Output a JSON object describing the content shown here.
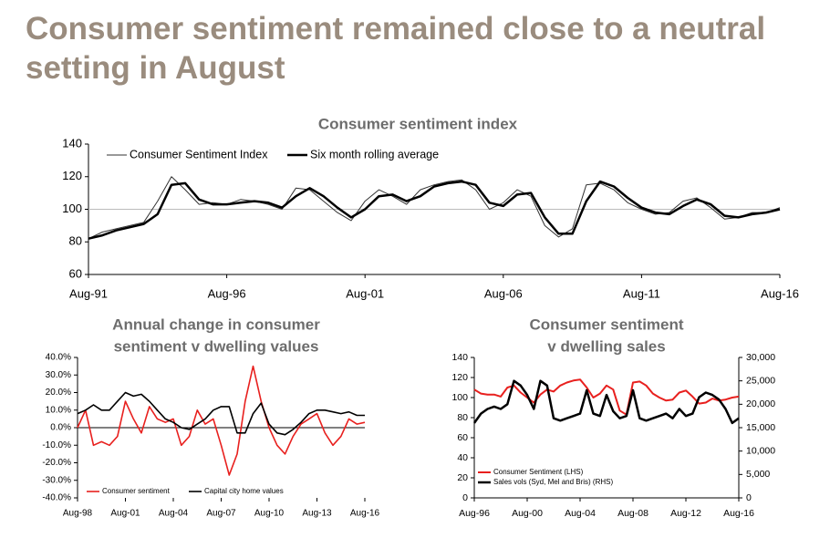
{
  "title": [
    "Consumer sentiment remained close to a neutral",
    "setting in August"
  ],
  "chart_data": [
    {
      "type": "line",
      "title": [
        "Consumer sentiment index"
      ],
      "categories": [
        "Aug-91",
        null,
        null,
        null,
        null,
        null,
        null,
        null,
        null,
        null,
        "Aug-96",
        null,
        null,
        null,
        null,
        null,
        null,
        null,
        null,
        null,
        "Aug-01",
        null,
        null,
        null,
        null,
        null,
        null,
        null,
        null,
        null,
        "Aug-06",
        null,
        null,
        null,
        null,
        null,
        null,
        null,
        null,
        null,
        "Aug-11",
        null,
        null,
        null,
        null,
        null,
        null,
        null,
        null,
        null,
        "Aug-16"
      ],
      "series": [
        {
          "name": "Consumer Sentiment Index",
          "color": "#333333",
          "values": [
            82,
            86,
            88,
            90,
            92,
            105,
            120,
            112,
            103,
            104,
            103,
            106,
            105,
            103,
            100,
            113,
            112,
            105,
            98,
            93,
            105,
            112,
            108,
            103,
            112,
            115,
            117,
            118,
            112,
            100,
            104,
            112,
            108,
            90,
            83,
            88,
            115,
            116,
            112,
            104,
            100,
            97,
            98,
            105,
            107,
            101,
            94,
            95,
            98,
            98,
            101
          ]
        },
        {
          "name": "Six month rolling average",
          "color": "#000000",
          "values": [
            82,
            84,
            87,
            89,
            91,
            97,
            115,
            116,
            106,
            103,
            103,
            104,
            105,
            104,
            101,
            108,
            113,
            108,
            101,
            95,
            100,
            108,
            109,
            105,
            108,
            114,
            116,
            117,
            115,
            104,
            102,
            109,
            110,
            95,
            85,
            85,
            105,
            117,
            114,
            107,
            101,
            98,
            97,
            102,
            106,
            103,
            96,
            95,
            97,
            98,
            100
          ]
        }
      ],
      "ylim": [
        60,
        140
      ],
      "yticks": [
        60,
        80,
        100,
        120,
        140
      ],
      "hline": 100,
      "legend": "top-left"
    },
    {
      "type": "line",
      "title": [
        "Annual change in consumer",
        "sentiment v dwelling values"
      ],
      "categories": [
        "Aug-98",
        null,
        null,
        null,
        null,
        null,
        "Aug-01",
        null,
        null,
        null,
        null,
        null,
        "Aug-04",
        null,
        null,
        null,
        null,
        null,
        "Aug-07",
        null,
        null,
        null,
        null,
        null,
        "Aug-10",
        null,
        null,
        null,
        null,
        null,
        "Aug-13",
        null,
        null,
        null,
        null,
        null,
        "Aug-16"
      ],
      "series": [
        {
          "name": "Consumer sentiment",
          "color": "#e8201e",
          "values": [
            0,
            10,
            -10,
            -8,
            -10,
            -5,
            15,
            5,
            -3,
            12,
            5,
            3,
            5,
            -10,
            -5,
            10,
            2,
            5,
            -10,
            -27,
            -15,
            15,
            35,
            15,
            0,
            -10,
            -15,
            -5,
            2,
            5,
            8,
            -3,
            -10,
            -5,
            5,
            2,
            3
          ]
        },
        {
          "name": "Capital city home values",
          "color": "#000000",
          "values": [
            8,
            10,
            13,
            10,
            10,
            15,
            20,
            18,
            19,
            15,
            10,
            5,
            3,
            0,
            -1,
            2,
            5,
            10,
            12,
            12,
            -3,
            -3,
            8,
            14,
            2,
            -3,
            -4,
            -1,
            3,
            8,
            10,
            10,
            9,
            8,
            9,
            7,
            7
          ]
        }
      ],
      "ylim": [
        -40,
        40
      ],
      "yticks": [
        {
          "value": -40,
          "label": "-40.0%"
        },
        {
          "value": -30,
          "label": "-30.0%"
        },
        {
          "value": -20,
          "label": "-20.0%"
        },
        {
          "value": -10,
          "label": "-10.0%"
        },
        {
          "value": 0,
          "label": "0.0%"
        },
        {
          "value": 10,
          "label": "10.0%"
        },
        {
          "value": 20,
          "label": "20.0%"
        },
        {
          "value": 30,
          "label": "30.0%"
        },
        {
          "value": 40,
          "label": "40.0%"
        }
      ],
      "legend": "bottom"
    },
    {
      "type": "line",
      "title": [
        "Consumer sentiment",
        "v dwelling sales"
      ],
      "categories": [
        "Aug-96",
        null,
        null,
        null,
        null,
        null,
        null,
        null,
        "Aug-00",
        null,
        null,
        null,
        null,
        null,
        null,
        null,
        "Aug-04",
        null,
        null,
        null,
        null,
        null,
        null,
        null,
        "Aug-08",
        null,
        null,
        null,
        null,
        null,
        null,
        null,
        "Aug-12",
        null,
        null,
        null,
        null,
        null,
        null,
        null,
        "Aug-16"
      ],
      "series": [
        {
          "name": "Consumer Sentiment (LHS)",
          "color": "#e8201e",
          "values": [
            108,
            104,
            103,
            103,
            101,
            110,
            112,
            105,
            100,
            95,
            103,
            108,
            106,
            112,
            115,
            117,
            118,
            110,
            100,
            104,
            112,
            108,
            87,
            83,
            115,
            116,
            112,
            104,
            100,
            97,
            98,
            105,
            107,
            101,
            94,
            95,
            99,
            97,
            98,
            100,
            101
          ]
        },
        {
          "name": "Sales vols (Syd, Mel and Bris) (RHS)",
          "color": "#000000",
          "axis": "y2",
          "values": [
            16000,
            18000,
            19000,
            19500,
            19000,
            20000,
            25000,
            24000,
            22000,
            19000,
            25000,
            24000,
            17000,
            16500,
            17000,
            17500,
            18000,
            23000,
            18000,
            17500,
            22000,
            18500,
            17000,
            17500,
            23000,
            17000,
            16500,
            17000,
            17500,
            18000,
            17000,
            19000,
            17500,
            18000,
            21500,
            22500,
            22000,
            21000,
            19000,
            16000,
            17000
          ]
        }
      ],
      "ylim": [
        0,
        140
      ],
      "yticks": [
        0,
        20,
        40,
        60,
        80,
        100,
        120,
        140
      ],
      "y2lim": [
        0,
        30000
      ],
      "y2ticks": [
        0,
        {
          "value": 5000,
          "label": "5,000"
        },
        {
          "value": 10000,
          "label": "10,000"
        },
        {
          "value": 15000,
          "label": "15,000"
        },
        {
          "value": 20000,
          "label": "20,000"
        },
        {
          "value": 25000,
          "label": "25,000"
        },
        {
          "value": 30000,
          "label": "30,000"
        }
      ],
      "legend": "bottom-left"
    }
  ]
}
